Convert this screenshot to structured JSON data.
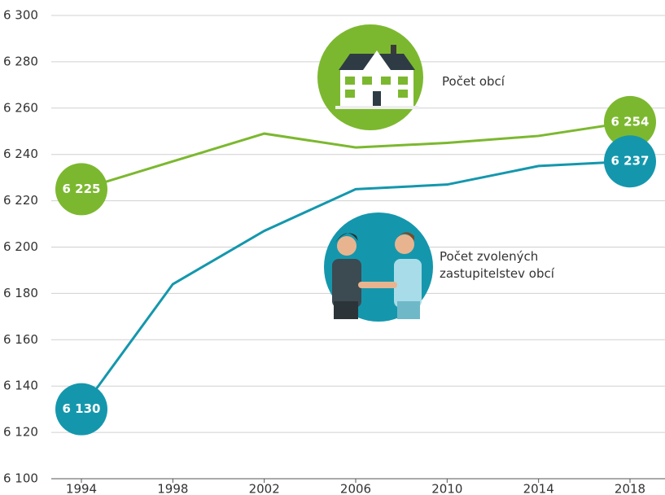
{
  "chart_data": {
    "type": "line",
    "x": [
      1994,
      1998,
      2002,
      2006,
      2010,
      2014,
      2018
    ],
    "xlim": [
      1994,
      2018
    ],
    "xticks": [
      1994,
      1998,
      2002,
      2006,
      2010,
      2014,
      2018
    ],
    "ylim": [
      6100,
      6300
    ],
    "yticks": [
      {
        "value": 6100,
        "label": "6 100"
      },
      {
        "value": 6120,
        "label": "6 120"
      },
      {
        "value": 6140,
        "label": "6 140"
      },
      {
        "value": 6160,
        "label": "6 160"
      },
      {
        "value": 6180,
        "label": "6 180"
      },
      {
        "value": 6200,
        "label": "6 200"
      },
      {
        "value": 6220,
        "label": "6 220"
      },
      {
        "value": 6240,
        "label": "6 240"
      },
      {
        "value": 6260,
        "label": "6 260"
      },
      {
        "value": 6280,
        "label": "6 280"
      },
      {
        "value": 6300,
        "label": "6 300"
      }
    ],
    "grid": true,
    "series": [
      {
        "name": "Počet obcí",
        "color": "#7cb82f",
        "values": [
          6225,
          6237,
          6249,
          6243,
          6245,
          6248,
          6254
        ],
        "value_labels": [
          "6 225",
          null,
          null,
          null,
          null,
          null,
          "6 254"
        ]
      },
      {
        "name": "Počet zvolených zastupitelstev obcí",
        "color": "#1497ad",
        "values": [
          6130,
          6184,
          6207,
          6225,
          6227,
          6235,
          6237
        ],
        "value_labels": [
          "6 130",
          null,
          null,
          null,
          null,
          null,
          "6 237"
        ]
      }
    ]
  }
}
